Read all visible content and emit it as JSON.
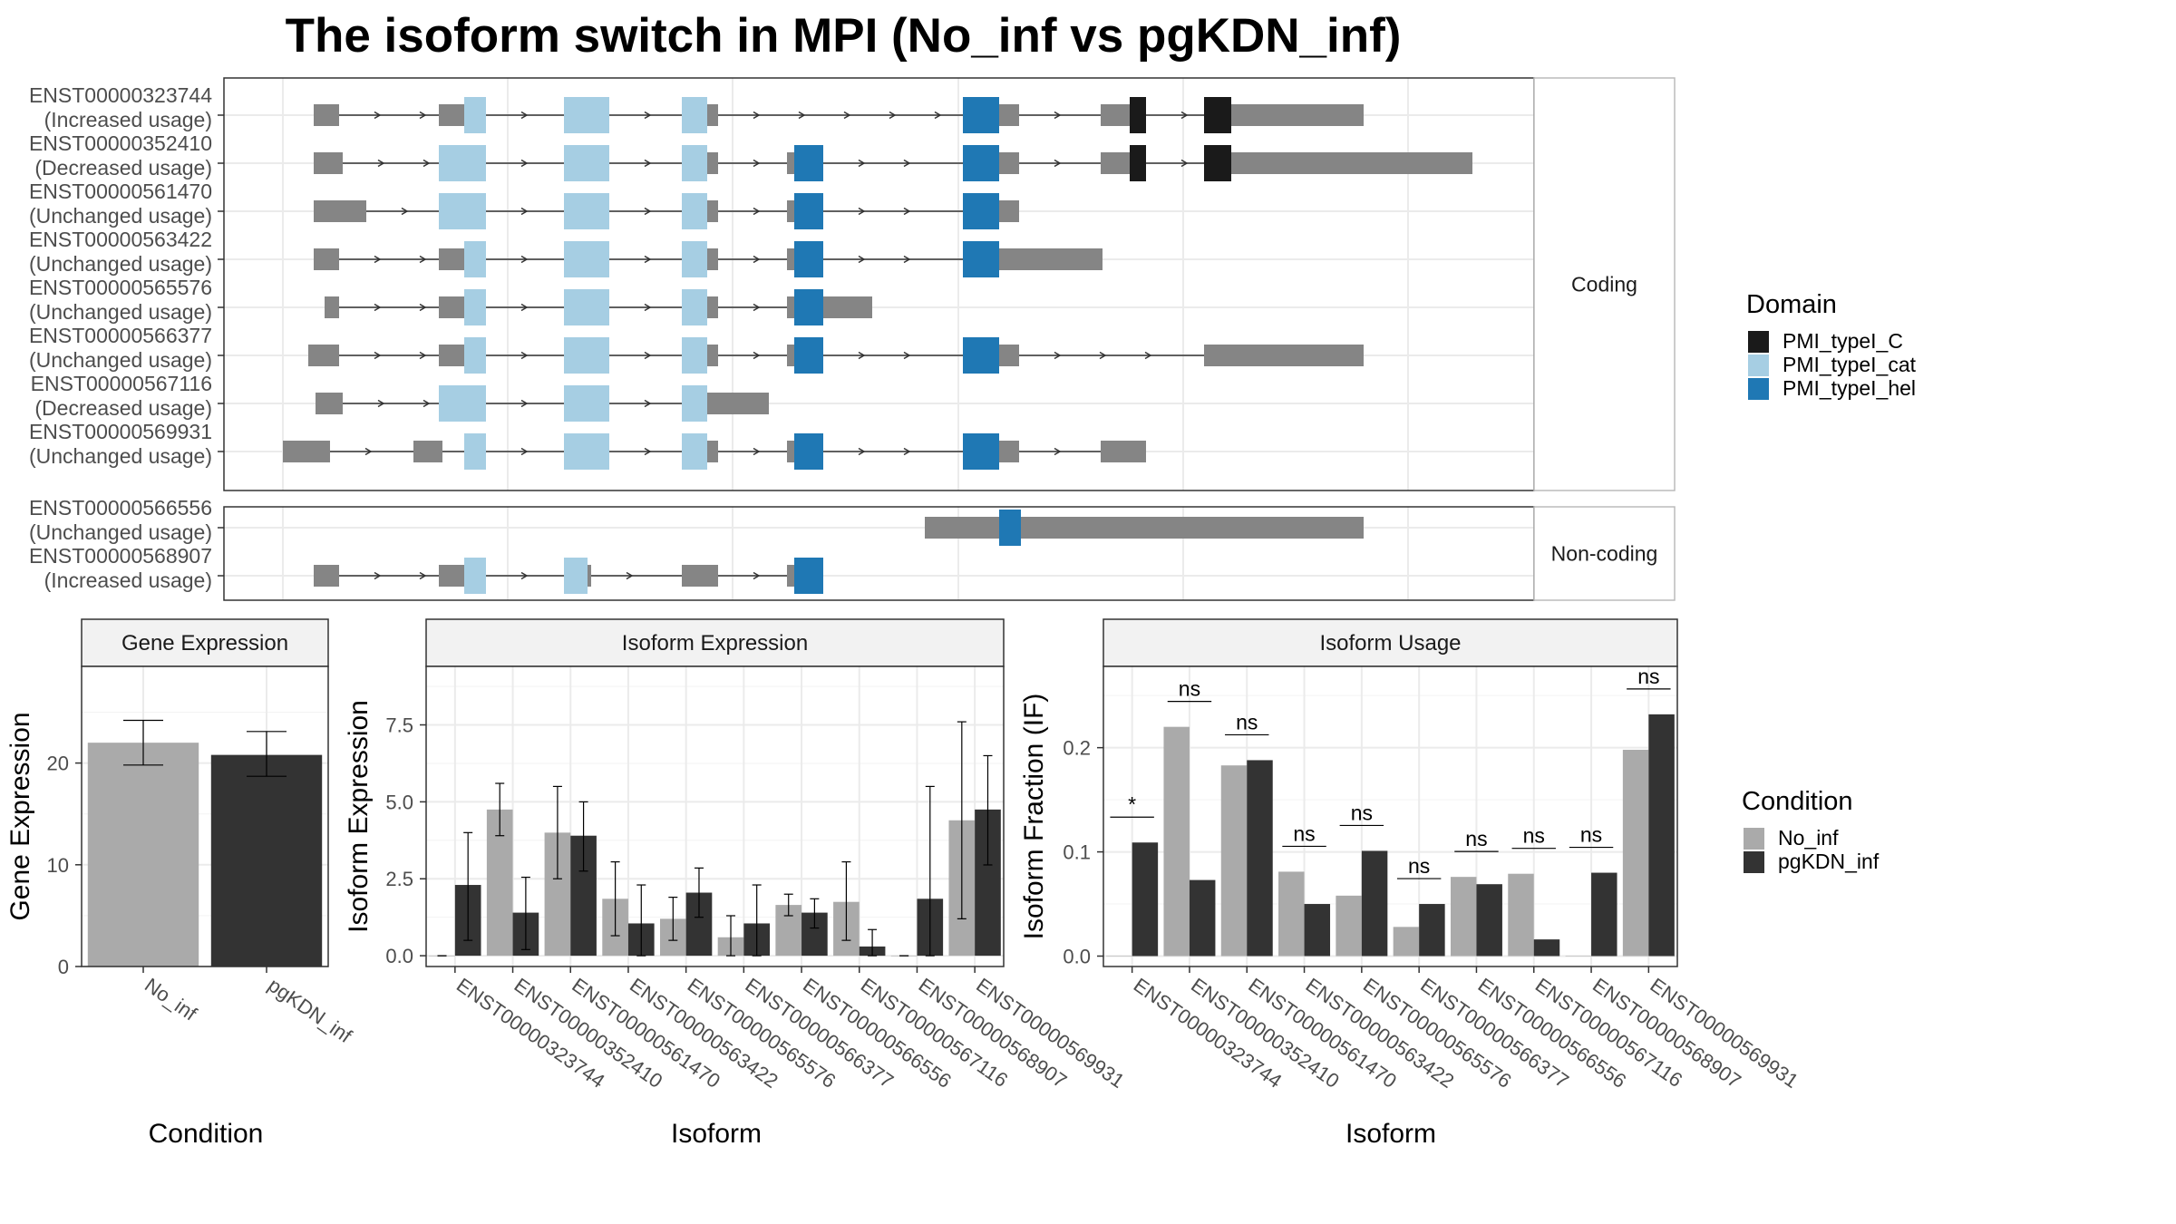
{
  "title": "The isoform switch in MPI (No_inf vs pgKDN_inf)",
  "colors": {
    "exon": "#858585",
    "intron": "#333333",
    "PMI_typeI_C": "#1a1a1a",
    "PMI_typeI_cat": "#a6cee3",
    "PMI_typeI_hel": "#1f78b4",
    "No_inf": "#aaaaaa",
    "pgKDN_inf": "#333333",
    "panel_border": "#333333",
    "grid": "#ebebeb"
  },
  "structure": {
    "strip_coding": "Coding",
    "strip_noncoding": "Non-coding",
    "transcripts": [
      {
        "id": "ENST00000323744",
        "usage": "(Increased usage)",
        "group": "Coding",
        "exons": [
          [
            17,
            31,
            "n"
          ],
          [
            86,
            100,
            "n"
          ],
          [
            100,
            112,
            "cat"
          ],
          [
            155,
            180,
            "cat"
          ],
          [
            220,
            234,
            "cat"
          ],
          [
            234,
            240,
            "n"
          ],
          [
            375,
            395,
            "hel"
          ],
          [
            395,
            406,
            "n"
          ],
          [
            451,
            467,
            "n"
          ],
          [
            467,
            476,
            "C"
          ],
          [
            508,
            523,
            "C"
          ],
          [
            523,
            536,
            "n"
          ],
          [
            536,
            596,
            "n"
          ]
        ]
      },
      {
        "id": "ENST00000352410",
        "usage": "(Decreased usage)",
        "group": "Coding",
        "exons": [
          [
            17,
            29,
            "n"
          ],
          [
            29,
            33,
            "n"
          ],
          [
            86,
            112,
            "cat"
          ],
          [
            155,
            180,
            "cat"
          ],
          [
            220,
            234,
            "cat"
          ],
          [
            234,
            240,
            "n"
          ],
          [
            278,
            282,
            "n"
          ],
          [
            282,
            298,
            "hel"
          ],
          [
            375,
            395,
            "hel"
          ],
          [
            395,
            406,
            "n"
          ],
          [
            451,
            467,
            "n"
          ],
          [
            467,
            476,
            "C"
          ],
          [
            508,
            523,
            "C"
          ],
          [
            523,
            536,
            "n"
          ],
          [
            536,
            656,
            "n"
          ]
        ]
      },
      {
        "id": "ENST00000561470",
        "usage": "(Unchanged usage)",
        "group": "Coding",
        "exons": [
          [
            17,
            46,
            "n"
          ],
          [
            86,
            112,
            "cat"
          ],
          [
            155,
            180,
            "cat"
          ],
          [
            220,
            234,
            "cat"
          ],
          [
            234,
            240,
            "n"
          ],
          [
            278,
            282,
            "n"
          ],
          [
            282,
            298,
            "hel"
          ],
          [
            375,
            395,
            "hel"
          ],
          [
            395,
            406,
            "n"
          ]
        ]
      },
      {
        "id": "ENST00000563422",
        "usage": "(Unchanged usage)",
        "group": "Coding",
        "exons": [
          [
            17,
            31,
            "n"
          ],
          [
            86,
            100,
            "n"
          ],
          [
            100,
            112,
            "cat"
          ],
          [
            155,
            180,
            "cat"
          ],
          [
            220,
            234,
            "cat"
          ],
          [
            234,
            240,
            "n"
          ],
          [
            278,
            282,
            "n"
          ],
          [
            282,
            298,
            "hel"
          ],
          [
            375,
            395,
            "hel"
          ],
          [
            395,
            452,
            "n"
          ]
        ]
      },
      {
        "id": "ENST00000565576",
        "usage": "(Unchanged usage)",
        "group": "Coding",
        "exons": [
          [
            23,
            31,
            "n"
          ],
          [
            86,
            100,
            "n"
          ],
          [
            100,
            112,
            "cat"
          ],
          [
            155,
            180,
            "cat"
          ],
          [
            220,
            234,
            "cat"
          ],
          [
            234,
            240,
            "n"
          ],
          [
            278,
            282,
            "n"
          ],
          [
            282,
            298,
            "hel"
          ],
          [
            298,
            325,
            "n"
          ]
        ]
      },
      {
        "id": "ENST00000566377",
        "usage": "(Unchanged usage)",
        "group": "Coding",
        "exons": [
          [
            14,
            31,
            "n"
          ],
          [
            86,
            100,
            "n"
          ],
          [
            100,
            112,
            "cat"
          ],
          [
            155,
            180,
            "cat"
          ],
          [
            220,
            234,
            "cat"
          ],
          [
            234,
            240,
            "n"
          ],
          [
            278,
            282,
            "n"
          ],
          [
            282,
            298,
            "hel"
          ],
          [
            375,
            395,
            "hel"
          ],
          [
            395,
            406,
            "n"
          ],
          [
            508,
            513,
            "n"
          ],
          [
            513,
            596,
            "n"
          ]
        ]
      },
      {
        "id": "ENST00000567116",
        "usage": "(Decreased usage)",
        "group": "Coding",
        "exons": [
          [
            18,
            29,
            "n"
          ],
          [
            29,
            33,
            "n"
          ],
          [
            86,
            112,
            "cat"
          ],
          [
            155,
            180,
            "cat"
          ],
          [
            220,
            234,
            "cat"
          ],
          [
            234,
            252,
            "n"
          ],
          [
            252,
            268,
            "n"
          ]
        ]
      },
      {
        "id": "ENST00000569931",
        "usage": "(Unchanged usage)",
        "group": "Coding",
        "exons": [
          [
            0,
            26,
            "n"
          ],
          [
            72,
            76,
            "n"
          ],
          [
            76,
            88,
            "n"
          ],
          [
            100,
            112,
            "cat"
          ],
          [
            155,
            180,
            "cat"
          ],
          [
            220,
            234,
            "cat"
          ],
          [
            234,
            240,
            "n"
          ],
          [
            278,
            282,
            "n"
          ],
          [
            282,
            298,
            "hel"
          ],
          [
            375,
            395,
            "hel"
          ],
          [
            395,
            406,
            "n"
          ],
          [
            451,
            476,
            "n"
          ]
        ]
      },
      {
        "id": "ENST00000566556",
        "usage": "(Unchanged usage)",
        "group": "Non-coding",
        "exons": [
          [
            354,
            395,
            "n"
          ],
          [
            395,
            407,
            "hel"
          ],
          [
            407,
            426,
            "n"
          ],
          [
            426,
            596,
            "n"
          ]
        ]
      },
      {
        "id": "ENST00000568907",
        "usage": "(Increased usage)",
        "group": "Non-coding",
        "exons": [
          [
            17,
            31,
            "n"
          ],
          [
            86,
            100,
            "n"
          ],
          [
            100,
            112,
            "cat"
          ],
          [
            155,
            168,
            "cat"
          ],
          [
            168,
            170,
            "n"
          ],
          [
            220,
            240,
            "n"
          ],
          [
            278,
            282,
            "n"
          ],
          [
            282,
            298,
            "hel"
          ]
        ]
      }
    ]
  },
  "legend_domain": {
    "title": "Domain",
    "items": [
      {
        "label": "PMI_typeI_C",
        "key": "PMI_typeI_C"
      },
      {
        "label": "PMI_typeI_cat",
        "key": "PMI_typeI_cat"
      },
      {
        "label": "PMI_typeI_hel",
        "key": "PMI_typeI_hel"
      }
    ]
  },
  "legend_condition": {
    "title": "Condition",
    "items": [
      {
        "label": "No_inf",
        "key": "No_inf"
      },
      {
        "label": "pgKDN_inf",
        "key": "pgKDN_inf"
      }
    ]
  },
  "chart_data": [
    {
      "type": "bar",
      "panel": "gene",
      "title": "Gene Expression",
      "xlabel": "Condition",
      "ylabel": "Gene Expression",
      "categories": [
        "No_inf",
        "pgKDN_inf"
      ],
      "values": [
        22.0,
        20.8
      ],
      "errors": [
        [
          19.8,
          24.2
        ],
        [
          18.7,
          23.1
        ]
      ],
      "ylim": [
        0,
        29.5
      ],
      "yticks": [
        0,
        10,
        20
      ]
    },
    {
      "type": "bar",
      "panel": "isoform_expression",
      "title": "Isoform Expression",
      "xlabel": "Isoform",
      "ylabel": "Isoform Expression",
      "categories": [
        "ENST00000323744",
        "ENST00000352410",
        "ENST00000561470",
        "ENST00000563422",
        "ENST00000565576",
        "ENST00000566377",
        "ENST00000566556",
        "ENST00000567116",
        "ENST00000568907",
        "ENST00000569931"
      ],
      "series": [
        {
          "name": "No_inf",
          "values": [
            0.0,
            4.75,
            4.0,
            1.85,
            1.2,
            0.6,
            1.65,
            1.75,
            0.0,
            4.4
          ],
          "errors": [
            [
              0.0,
              0.0
            ],
            [
              3.9,
              5.6
            ],
            [
              2.5,
              5.5
            ],
            [
              0.65,
              3.05
            ],
            [
              0.5,
              1.9
            ],
            [
              0.0,
              1.3
            ],
            [
              1.3,
              2.0
            ],
            [
              0.5,
              3.05
            ],
            [
              0.0,
              0.0
            ],
            [
              1.2,
              7.6
            ]
          ]
        },
        {
          "name": "pgKDN_inf",
          "values": [
            2.3,
            1.4,
            3.9,
            1.05,
            2.05,
            1.05,
            1.4,
            0.3,
            1.85,
            4.75
          ],
          "errors": [
            [
              0.5,
              4.0
            ],
            [
              0.2,
              2.55
            ],
            [
              2.75,
              5.0
            ],
            [
              0.0,
              2.3
            ],
            [
              1.25,
              2.85
            ],
            [
              0.0,
              2.3
            ],
            [
              0.9,
              1.85
            ],
            [
              0.0,
              0.85
            ],
            [
              0.0,
              5.5
            ],
            [
              2.95,
              6.5
            ]
          ]
        }
      ],
      "ylim": [
        -0.35,
        9.4
      ],
      "yticks": [
        0.0,
        2.5,
        5.0,
        7.5
      ],
      "ytick_labels": [
        "0.0",
        "2.5",
        "5.0",
        "7.5"
      ]
    },
    {
      "type": "bar",
      "panel": "isoform_usage",
      "title": "Isoform Usage",
      "xlabel": "Isoform",
      "ylabel": "Isoform Fraction (IF)",
      "categories": [
        "ENST00000323744",
        "ENST00000352410",
        "ENST00000561470",
        "ENST00000563422",
        "ENST00000565576",
        "ENST00000566377",
        "ENST00000566556",
        "ENST00000567116",
        "ENST00000568907",
        "ENST00000569931"
      ],
      "series": [
        {
          "name": "No_inf",
          "values": [
            0.0,
            0.22,
            0.183,
            0.081,
            0.058,
            0.028,
            0.076,
            0.079,
            0.0,
            0.198
          ]
        },
        {
          "name": "pgKDN_inf",
          "values": [
            0.109,
            0.073,
            0.188,
            0.05,
            0.101,
            0.05,
            0.069,
            0.016,
            0.08,
            0.232
          ]
        }
      ],
      "significance": [
        "*",
        "ns",
        "ns",
        "ns",
        "ns",
        "ns",
        "ns",
        "ns",
        "ns",
        "ns"
      ],
      "ylim": [
        -0.01,
        0.278
      ],
      "yticks": [
        0.0,
        0.1,
        0.2
      ],
      "ytick_labels": [
        "0.0",
        "0.1",
        "0.2"
      ]
    }
  ]
}
